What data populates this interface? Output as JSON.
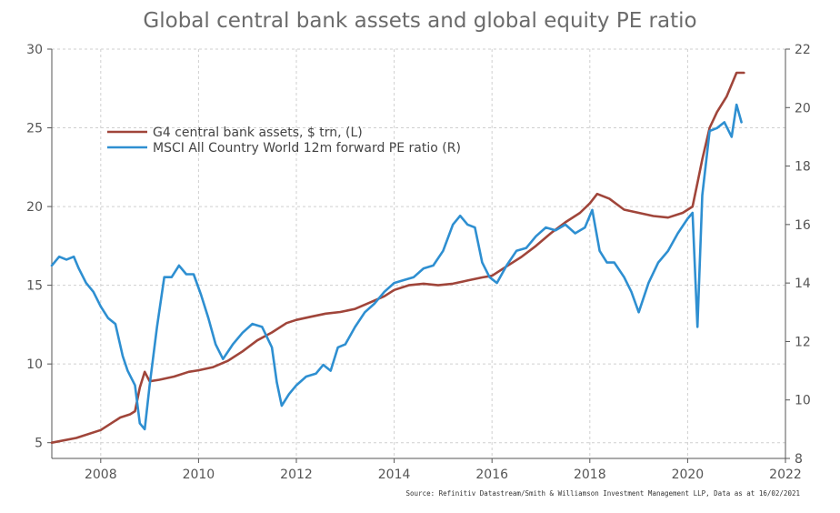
{
  "page": {
    "title": "Global central bank assets and global equity PE ratio",
    "source": "Source: Refinitiv Datastream/Smith & Williamson Investment Management LLP, Data as at 16/02/2021"
  },
  "chart_data": {
    "type": "line",
    "title": "Global central bank assets and global equity PE ratio",
    "x_axis": {
      "min": 2007,
      "max": 2022,
      "ticks": [
        2008,
        2010,
        2012,
        2014,
        2016,
        2018,
        2020,
        2022
      ]
    },
    "y_left": {
      "min": 4,
      "max": 30,
      "ticks": [
        5,
        10,
        15,
        20,
        25,
        30
      ]
    },
    "y_right": {
      "min": 8,
      "max": 22,
      "ticks": [
        8,
        10,
        12,
        14,
        16,
        18,
        20,
        22
      ]
    },
    "grid": true,
    "legend": "upper-left",
    "series": [
      {
        "name": "G4 central bank assets, $ trn, (L)",
        "axis": "left",
        "color": "#a0453a",
        "x": [
          2007.0,
          2007.5,
          2008.0,
          2008.4,
          2008.6,
          2008.7,
          2008.8,
          2008.9,
          2009.0,
          2009.2,
          2009.5,
          2009.8,
          2010.0,
          2010.3,
          2010.6,
          2010.9,
          2011.2,
          2011.5,
          2011.8,
          2012.0,
          2012.3,
          2012.6,
          2012.9,
          2013.2,
          2013.5,
          2013.8,
          2014.0,
          2014.3,
          2014.6,
          2014.9,
          2015.2,
          2015.5,
          2015.8,
          2016.0,
          2016.3,
          2016.6,
          2016.9,
          2017.2,
          2017.5,
          2017.8,
          2018.0,
          2018.15,
          2018.4,
          2018.7,
          2019.0,
          2019.3,
          2019.6,
          2019.9,
          2020.1,
          2020.2,
          2020.3,
          2020.45,
          2020.6,
          2020.8,
          2021.0,
          2021.15
        ],
        "y": [
          5.0,
          5.3,
          5.8,
          6.6,
          6.8,
          7.0,
          8.5,
          9.5,
          8.9,
          9.0,
          9.2,
          9.5,
          9.6,
          9.8,
          10.2,
          10.8,
          11.5,
          12.0,
          12.6,
          12.8,
          13.0,
          13.2,
          13.3,
          13.5,
          13.9,
          14.3,
          14.7,
          15.0,
          15.1,
          15.0,
          15.1,
          15.3,
          15.5,
          15.6,
          16.2,
          16.8,
          17.5,
          18.3,
          19.0,
          19.6,
          20.2,
          20.8,
          20.5,
          19.8,
          19.6,
          19.4,
          19.3,
          19.6,
          20.0,
          21.5,
          23.0,
          25.0,
          26.0,
          27.0,
          28.5,
          28.5
        ]
      },
      {
        "name": "MSCI All Country World 12m forward PE ratio (R)",
        "axis": "right",
        "color": "#2e8fd1",
        "x": [
          2007.0,
          2007.15,
          2007.3,
          2007.45,
          2007.55,
          2007.7,
          2007.85,
          2008.0,
          2008.15,
          2008.3,
          2008.45,
          2008.55,
          2008.7,
          2008.8,
          2008.9,
          2009.0,
          2009.15,
          2009.3,
          2009.45,
          2009.6,
          2009.75,
          2009.9,
          2010.05,
          2010.2,
          2010.35,
          2010.5,
          2010.7,
          2010.9,
          2011.1,
          2011.3,
          2011.5,
          2011.6,
          2011.7,
          2011.85,
          2012.0,
          2012.2,
          2012.4,
          2012.55,
          2012.7,
          2012.85,
          2013.0,
          2013.2,
          2013.4,
          2013.6,
          2013.8,
          2014.0,
          2014.2,
          2014.4,
          2014.6,
          2014.8,
          2015.0,
          2015.2,
          2015.35,
          2015.5,
          2015.65,
          2015.8,
          2015.95,
          2016.1,
          2016.3,
          2016.5,
          2016.7,
          2016.9,
          2017.1,
          2017.3,
          2017.5,
          2017.7,
          2017.9,
          2018.05,
          2018.2,
          2018.35,
          2018.5,
          2018.7,
          2018.85,
          2019.0,
          2019.2,
          2019.4,
          2019.6,
          2019.8,
          2020.0,
          2020.1,
          2020.2,
          2020.3,
          2020.45,
          2020.6,
          2020.75,
          2020.9,
          2021.0,
          2021.1
        ],
        "y": [
          14.6,
          14.9,
          14.8,
          14.9,
          14.5,
          14.0,
          13.7,
          13.2,
          12.8,
          12.6,
          11.5,
          11.0,
          10.5,
          9.2,
          9.0,
          10.5,
          12.5,
          14.2,
          14.2,
          14.6,
          14.3,
          14.3,
          13.6,
          12.8,
          11.9,
          11.4,
          11.9,
          12.3,
          12.6,
          12.5,
          11.8,
          10.6,
          9.8,
          10.2,
          10.5,
          10.8,
          10.9,
          11.2,
          11.0,
          11.8,
          11.9,
          12.5,
          13.0,
          13.3,
          13.7,
          14.0,
          14.1,
          14.2,
          14.5,
          14.6,
          15.1,
          16.0,
          16.3,
          16.0,
          15.9,
          14.7,
          14.2,
          14.0,
          14.6,
          15.1,
          15.2,
          15.6,
          15.9,
          15.8,
          16.0,
          15.7,
          15.9,
          16.5,
          15.1,
          14.7,
          14.7,
          14.2,
          13.7,
          13.0,
          14.0,
          14.7,
          15.1,
          15.7,
          16.2,
          16.4,
          12.5,
          17.0,
          19.2,
          19.3,
          19.5,
          19.0,
          20.1,
          19.5
        ]
      }
    ]
  }
}
